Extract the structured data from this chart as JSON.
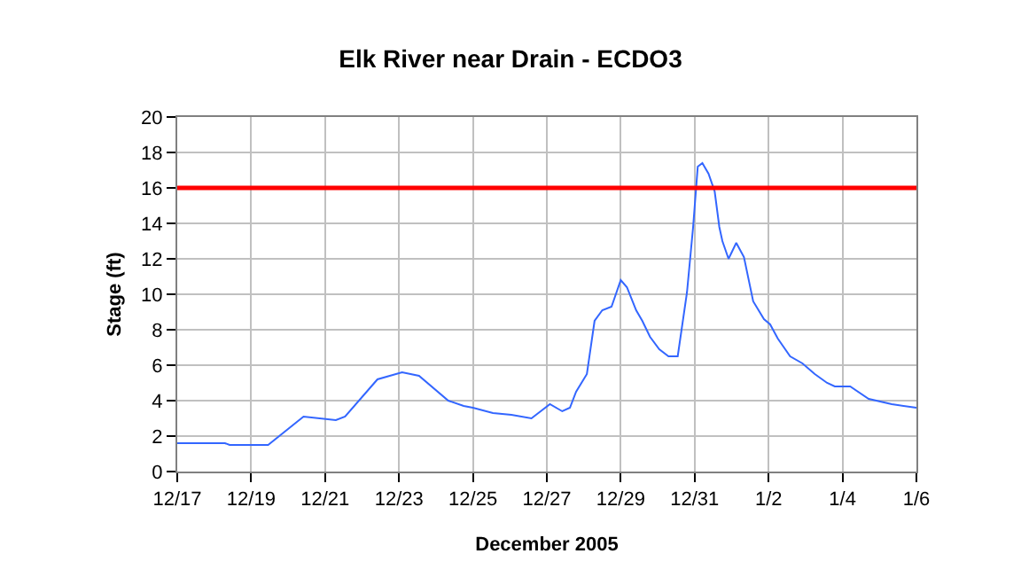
{
  "chart_data": {
    "type": "line",
    "title": "Elk River near Drain - ECDO3",
    "xlabel": "December 2005",
    "ylabel": "Stage (ft)",
    "x": [
      "2005-12-17T00:00",
      "2005-12-18T07:00",
      "2005-12-18T10:00",
      "2005-12-19T11:00",
      "2005-12-20T10:00",
      "2005-12-21T07:00",
      "2005-12-21T13:00",
      "2005-12-22T10:00",
      "2005-12-23T02:00",
      "2005-12-23T13:00",
      "2005-12-24T08:00",
      "2005-12-24T18:00",
      "2005-12-25T00:00",
      "2005-12-25T13:00",
      "2005-12-26T01:00",
      "2005-12-26T14:00",
      "2005-12-27T02:00",
      "2005-12-27T10:00",
      "2005-12-27T15:00",
      "2005-12-27T19:00",
      "2005-12-28T02:00",
      "2005-12-28T07:00",
      "2005-12-28T12:00",
      "2005-12-28T18:00",
      "2005-12-29T00:00",
      "2005-12-29T04:00",
      "2005-12-29T10:00",
      "2005-12-29T14:00",
      "2005-12-29T19:00",
      "2005-12-30T01:00",
      "2005-12-30T07:00",
      "2005-12-30T13:00",
      "2005-12-30T19:00",
      "2005-12-30T23:00",
      "2005-12-31T02:00",
      "2005-12-31T05:00",
      "2005-12-31T09:00",
      "2005-12-31T13:00",
      "2005-12-31T16:00",
      "2005-12-31T18:00",
      "2005-12-31T22:00",
      "2006-01-01T03:00",
      "2006-01-01T08:00",
      "2006-01-01T14:00",
      "2006-01-01T21:00",
      "2006-01-02T01:00",
      "2006-01-02T06:00",
      "2006-01-02T14:00",
      "2006-01-02T22:00",
      "2006-01-03T06:00",
      "2006-01-03T14:00",
      "2006-01-03T19:00",
      "2006-01-04T05:00",
      "2006-01-04T17:00",
      "2006-01-05T08:00",
      "2006-01-06T00:00"
    ],
    "series": [
      {
        "color": "#3366ff",
        "values": [
          1.6,
          1.6,
          1.5,
          1.5,
          3.1,
          2.9,
          3.1,
          5.2,
          5.6,
          5.4,
          4.0,
          3.7,
          3.6,
          3.3,
          3.2,
          3.0,
          3.8,
          3.4,
          3.6,
          4.5,
          5.5,
          8.5,
          9.1,
          9.3,
          10.8,
          10.4,
          9.1,
          8.5,
          7.6,
          6.9,
          6.5,
          6.5,
          10.1,
          13.8,
          17.2,
          17.4,
          16.8,
          15.8,
          13.8,
          13.0,
          12.0,
          12.9,
          12.1,
          9.6,
          8.6,
          8.3,
          7.5,
          6.5,
          6.1,
          5.5,
          5.0,
          4.8,
          4.8,
          4.1,
          3.8,
          3.6
        ]
      }
    ],
    "xlim": [
      "2005-12-17",
      "2006-01-06"
    ],
    "xticks": [
      {
        "value": "2005-12-17",
        "label": "12/17"
      },
      {
        "value": "2005-12-19",
        "label": "12/19"
      },
      {
        "value": "2005-12-21",
        "label": "12/21"
      },
      {
        "value": "2005-12-23",
        "label": "12/23"
      },
      {
        "value": "2005-12-25",
        "label": "12/25"
      },
      {
        "value": "2005-12-27",
        "label": "12/27"
      },
      {
        "value": "2005-12-29",
        "label": "12/29"
      },
      {
        "value": "2005-12-31",
        "label": "12/31"
      },
      {
        "value": "2006-01-02",
        "label": "1/2"
      },
      {
        "value": "2006-01-04",
        "label": "1/4"
      },
      {
        "value": "2006-01-06",
        "label": "1/6"
      }
    ],
    "ylim": [
      0,
      20
    ],
    "yticks": [
      0,
      2,
      4,
      6,
      8,
      10,
      12,
      14,
      16,
      18,
      20
    ],
    "ref_lines": [
      {
        "axis": "y",
        "value": 16,
        "color": "#ff0000",
        "line_style": "solid"
      }
    ],
    "grid": true,
    "legend": false,
    "marker": "none",
    "line_style": "solid"
  }
}
